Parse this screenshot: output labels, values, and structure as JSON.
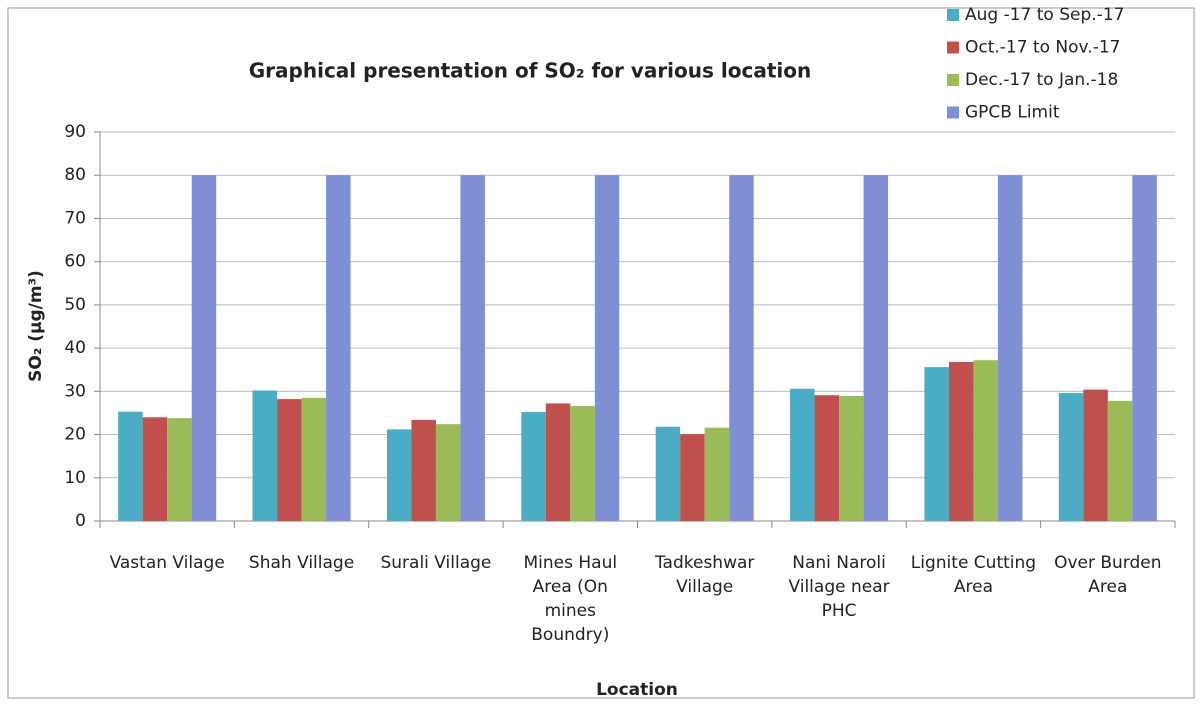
{
  "chart_data": {
    "type": "bar",
    "title": "Graphical presentation of SO₂ for various location",
    "y_label": "SO₂ (µg/m³)",
    "x_label": "Location",
    "categories": [
      "Vastan Vilage",
      "Shah Village",
      "Surali Village",
      "Mines Haul Area (On mines Boundry)",
      "Tadkeshwar Village",
      "Nani Naroli Village near PHC",
      "Lignite Cutting Area",
      "Over Burden Area"
    ],
    "series": [
      {
        "name": "Aug -17 to Sep.-17",
        "color": "#4bacc6",
        "values": [
          25.3,
          30.2,
          21.2,
          25.2,
          21.8,
          30.6,
          35.6,
          29.6
        ]
      },
      {
        "name": "Oct.-17 to Nov.-17",
        "color": "#c0504d",
        "values": [
          24,
          28.2,
          23.4,
          27.2,
          20.1,
          29.1,
          36.8,
          30.4
        ]
      },
      {
        "name": "Dec.-17 to Jan.-18",
        "color": "#9bbb59",
        "values": [
          23.8,
          28.5,
          22.4,
          26.6,
          21.6,
          28.9,
          37.2,
          27.8
        ]
      },
      {
        "name": "GPCB Limit",
        "color": "#7f8fd6",
        "values": [
          80,
          80,
          80,
          80,
          80,
          80,
          80,
          80
        ]
      }
    ],
    "ylim": [
      0,
      90
    ],
    "yticks": [
      0,
      10,
      20,
      30,
      40,
      50,
      60,
      70,
      80,
      90
    ],
    "grid": true,
    "legend": "top-right"
  }
}
